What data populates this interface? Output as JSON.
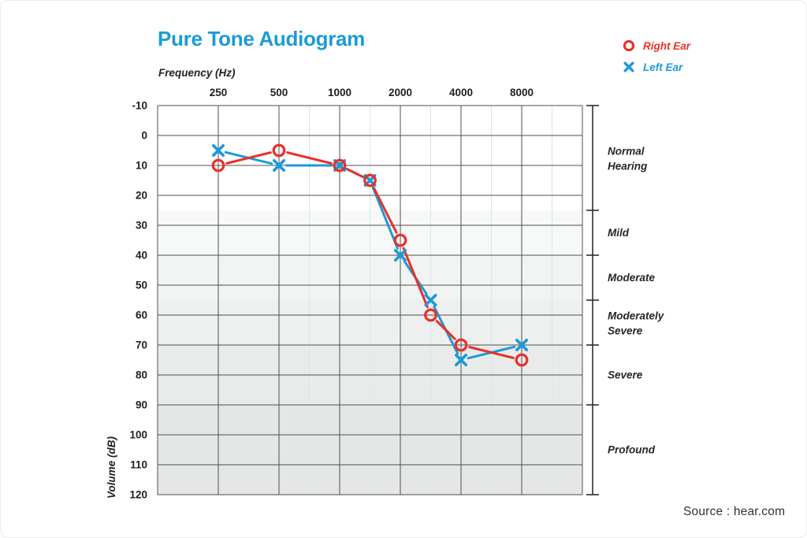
{
  "page": {
    "title": "Pure Tone Audiogram",
    "source": "Source : hear.com"
  },
  "axes": {
    "x_title": "Frequency (Hz)",
    "y_title": "Volume (dB)"
  },
  "legend": [
    {
      "label": "Right Ear",
      "marker": "circle-icon",
      "color": "#e8312b"
    },
    {
      "label": "Left Ear",
      "marker": "x-icon",
      "color": "#1d9ad7"
    }
  ],
  "chart_data": {
    "type": "line",
    "title": "Pure Tone Audiogram",
    "xlabel": "Frequency (Hz)",
    "ylabel": "Volume (dB)",
    "x_tick_labels": [
      "250",
      "500",
      "1000",
      "2000",
      "4000",
      "8000"
    ],
    "y_ticks": [
      -10,
      0,
      10,
      20,
      30,
      40,
      50,
      60,
      70,
      80,
      90,
      100,
      110,
      120
    ],
    "ylim": [
      -10,
      120
    ],
    "y_axis_inverted": true,
    "grid": "on",
    "legend_position": "top-right",
    "series": [
      {
        "name": "Right Ear",
        "color": "#e8312b",
        "marker": "circle",
        "x": [
          250,
          500,
          1000,
          1500,
          2000,
          3000,
          4000,
          8000
        ],
        "values": [
          10,
          5,
          10,
          15,
          35,
          60,
          70,
          75
        ]
      },
      {
        "name": "Left Ear",
        "color": "#1d9ad7",
        "marker": "x",
        "x": [
          250,
          500,
          1000,
          1500,
          2000,
          3000,
          4000,
          8000
        ],
        "values": [
          5,
          10,
          10,
          15,
          40,
          55,
          75,
          70
        ]
      }
    ],
    "hearing_bands": [
      {
        "label": "Normal Hearing",
        "label_lines": [
          "Normal",
          "Hearing"
        ],
        "range": [
          -10,
          25
        ]
      },
      {
        "label": "Mild",
        "label_lines": [
          "Mild"
        ],
        "range": [
          25,
          40
        ]
      },
      {
        "label": "Moderate",
        "label_lines": [
          "Moderate"
        ],
        "range": [
          40,
          55
        ]
      },
      {
        "label": "Moderately Severe",
        "label_lines": [
          "Moderately",
          "Severe"
        ],
        "range": [
          55,
          70
        ]
      },
      {
        "label": "Severe",
        "label_lines": [
          "Severe"
        ],
        "range": [
          70,
          90
        ]
      },
      {
        "label": "Profound",
        "label_lines": [
          "Profound"
        ],
        "range": [
          90,
          120
        ]
      }
    ],
    "band_fills": [
      "#ffffff",
      "#f7f8f8",
      "#f2f3f3",
      "#eeefef",
      "#e9ebeb",
      "#e5e7e7"
    ],
    "colors": {
      "grid_major": "#4f4f4f",
      "grid_minor": "#d9e5ee",
      "bracket": "#2e2e2e",
      "tick_text": "#1f1f1f",
      "band_text": "#262626"
    }
  }
}
